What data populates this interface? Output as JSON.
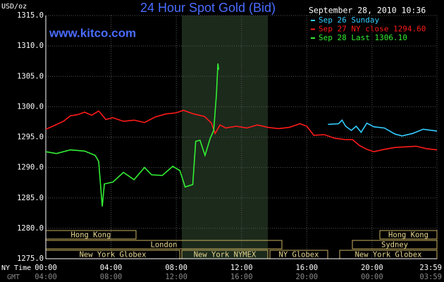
{
  "chart_data": {
    "type": "line",
    "title": "24 Hour Spot Gold (Bid)",
    "source": "www.kitco.com",
    "timestamp": "September 28, 2010 10:36",
    "y_unit": "USD/oz",
    "x_row_label": "NY Time",
    "x2_row_label": "GMT",
    "grid": true,
    "background": "#000000",
    "xlim": [
      0,
      23.98
    ],
    "ylim": [
      1275,
      1315
    ],
    "yticks": [
      {
        "value": 1275,
        "label": "1275.0"
      },
      {
        "value": 1280,
        "label": "1280.0"
      },
      {
        "value": 1285,
        "label": "1285.0"
      },
      {
        "value": 1290,
        "label": "1290.0"
      },
      {
        "value": 1295,
        "label": "1295.0"
      },
      {
        "value": 1300,
        "label": "1300.0"
      },
      {
        "value": 1305,
        "label": "1305.0"
      },
      {
        "value": 1310,
        "label": "1310.0"
      },
      {
        "value": 1315,
        "label": "1315.0"
      }
    ],
    "xticks": [
      {
        "value": 0,
        "label": "00:00"
      },
      {
        "value": 4,
        "label": "04:00"
      },
      {
        "value": 8,
        "label": "08:00"
      },
      {
        "value": 12,
        "label": "12:00"
      },
      {
        "value": 16,
        "label": "16:00"
      },
      {
        "value": 20,
        "label": "20:00"
      },
      {
        "value": 23.98,
        "label": "23:59"
      }
    ],
    "x2ticks": [
      {
        "value": 0,
        "label": "04:00"
      },
      {
        "value": 4,
        "label": "08:00"
      },
      {
        "value": 8,
        "label": "12:00"
      },
      {
        "value": 12,
        "label": "16:00"
      },
      {
        "value": 16,
        "label": "20:00"
      },
      {
        "value": 20,
        "label": "00:00"
      },
      {
        "value": 23.98,
        "label": "03:59"
      }
    ],
    "sessions": [
      "Hong Kong",
      "Hong Kong",
      "London",
      "Sydney",
      "New York Globex",
      "New York NYMEX",
      "NY Globex",
      "New York Globex"
    ],
    "series": [
      {
        "name": "Sep 26 Sunday",
        "color": "#33ccff",
        "x": [
          17.3,
          17.95,
          18.16,
          18.38,
          18.73,
          19.03,
          19.33,
          19.68,
          20.11,
          20.76,
          21.41,
          21.84,
          22.49,
          23.14,
          23.98
        ],
        "values": [
          1297.1,
          1297.2,
          1297.8,
          1296.8,
          1296.1,
          1296.8,
          1295.8,
          1297.3,
          1296.7,
          1296.5,
          1295.5,
          1295.2,
          1295.6,
          1296.3,
          1296.0
        ]
      },
      {
        "name": "Sep 27 NY close 1294.60",
        "color": "#ff1a1a",
        "x": [
          0,
          0.43,
          1.08,
          1.51,
          1.95,
          2.38,
          2.81,
          3.24,
          3.68,
          4.11,
          4.76,
          5.41,
          6.05,
          6.7,
          7.35,
          8.0,
          8.43,
          9.08,
          9.73,
          10.16,
          10.38,
          10.68,
          11.03,
          11.68,
          12.32,
          12.97,
          13.62,
          14.27,
          14.92,
          15.57,
          16.0,
          16.43,
          17.08,
          17.73,
          18.38,
          18.81,
          19.24,
          19.68,
          20.11,
          20.76,
          21.41,
          22.05,
          22.7,
          23.35,
          23.98
        ],
        "values": [
          1296.3,
          1296.8,
          1297.6,
          1298.5,
          1298.7,
          1299.1,
          1298.6,
          1299.3,
          1297.9,
          1298.2,
          1297.6,
          1297.8,
          1297.4,
          1298.3,
          1298.8,
          1299.0,
          1299.4,
          1298.8,
          1298.4,
          1297.3,
          1295.6,
          1297.0,
          1296.5,
          1296.8,
          1296.5,
          1297.0,
          1296.6,
          1296.4,
          1296.6,
          1297.2,
          1296.8,
          1295.3,
          1295.4,
          1294.8,
          1294.6,
          1294.6,
          1293.6,
          1293.0,
          1292.6,
          1293.0,
          1293.3,
          1293.4,
          1293.5,
          1293.1,
          1292.9
        ]
      },
      {
        "name": "Sep 28 Last 1306.10",
        "color": "#33ee33",
        "x": [
          0,
          0.65,
          1.51,
          2.38,
          3.03,
          3.24,
          3.46,
          3.59,
          4.11,
          4.76,
          5.41,
          6.05,
          6.49,
          7.14,
          7.78,
          8.22,
          8.54,
          9.01,
          9.19,
          9.45,
          9.76,
          10.08,
          10.29,
          10.46,
          10.55,
          10.6
        ],
        "values": [
          1292.6,
          1292.3,
          1292.9,
          1292.7,
          1292.0,
          1291.0,
          1283.6,
          1287.3,
          1287.6,
          1289.2,
          1288.0,
          1290.0,
          1288.8,
          1288.7,
          1290.2,
          1289.5,
          1286.8,
          1287.2,
          1294.3,
          1294.5,
          1292.0,
          1294.8,
          1296.1,
          1302.0,
          1307.1,
          1306.1
        ]
      }
    ]
  }
}
